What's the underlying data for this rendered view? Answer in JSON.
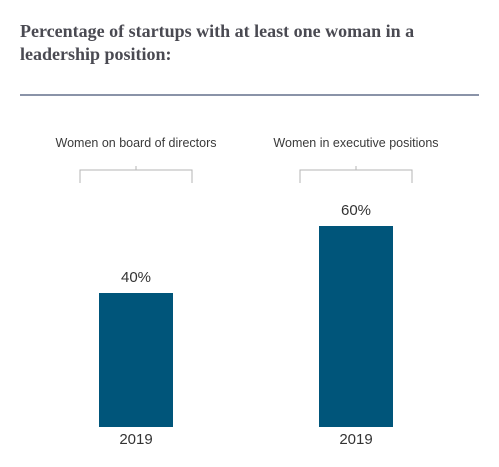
{
  "chart_data": {
    "type": "bar",
    "title": "Percentage of startups with at least one woman in a leadership position:",
    "groups": [
      "Women on board of directors",
      "Women in executive positions"
    ],
    "categories": [
      "2019",
      "2019"
    ],
    "values": [
      40,
      60
    ],
    "value_labels": [
      "40%",
      "60%"
    ],
    "unit": "%",
    "ylim": [
      0,
      100
    ],
    "grid": false,
    "bar_color": "#00557a"
  }
}
